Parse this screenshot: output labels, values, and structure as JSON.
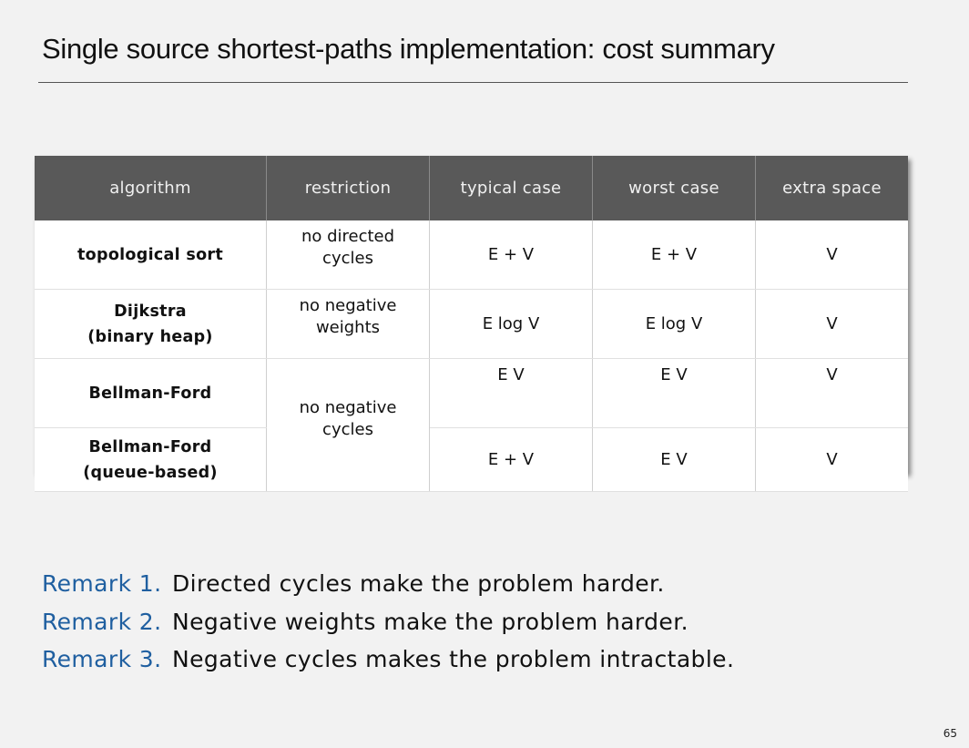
{
  "title": "Single source shortest-paths implementation:  cost summary",
  "table": {
    "headers": [
      "algorithm",
      "restriction",
      "typical case",
      "worst case",
      "extra space"
    ],
    "rows": [
      {
        "algorithm": [
          "topological sort"
        ],
        "restriction": [
          "no directed",
          "cycles"
        ],
        "typical": "E + V",
        "worst": "E + V",
        "space": "V"
      },
      {
        "algorithm": [
          "Dijkstra",
          "(binary heap)"
        ],
        "restriction": [
          "no negative",
          "weights"
        ],
        "typical": "E log V",
        "worst": "E log V",
        "space": "V"
      },
      {
        "algorithm": [
          "Bellman-Ford"
        ],
        "restriction": [
          "no negative",
          "cycles"
        ],
        "typical": "E V",
        "worst": "E V",
        "space": "V"
      },
      {
        "algorithm": [
          "Bellman-Ford",
          "(queue-based)"
        ],
        "typical": "E + V",
        "worst": "E V",
        "space": "V"
      }
    ]
  },
  "remarks": [
    {
      "label": "Remark 1.",
      "text": "Directed cycles make the problem harder."
    },
    {
      "label": "Remark 2.",
      "text": "Negative weights make the problem harder."
    },
    {
      "label": "Remark 3.",
      "text": "Negative cycles makes the problem intractable."
    }
  ],
  "page_number": "65"
}
